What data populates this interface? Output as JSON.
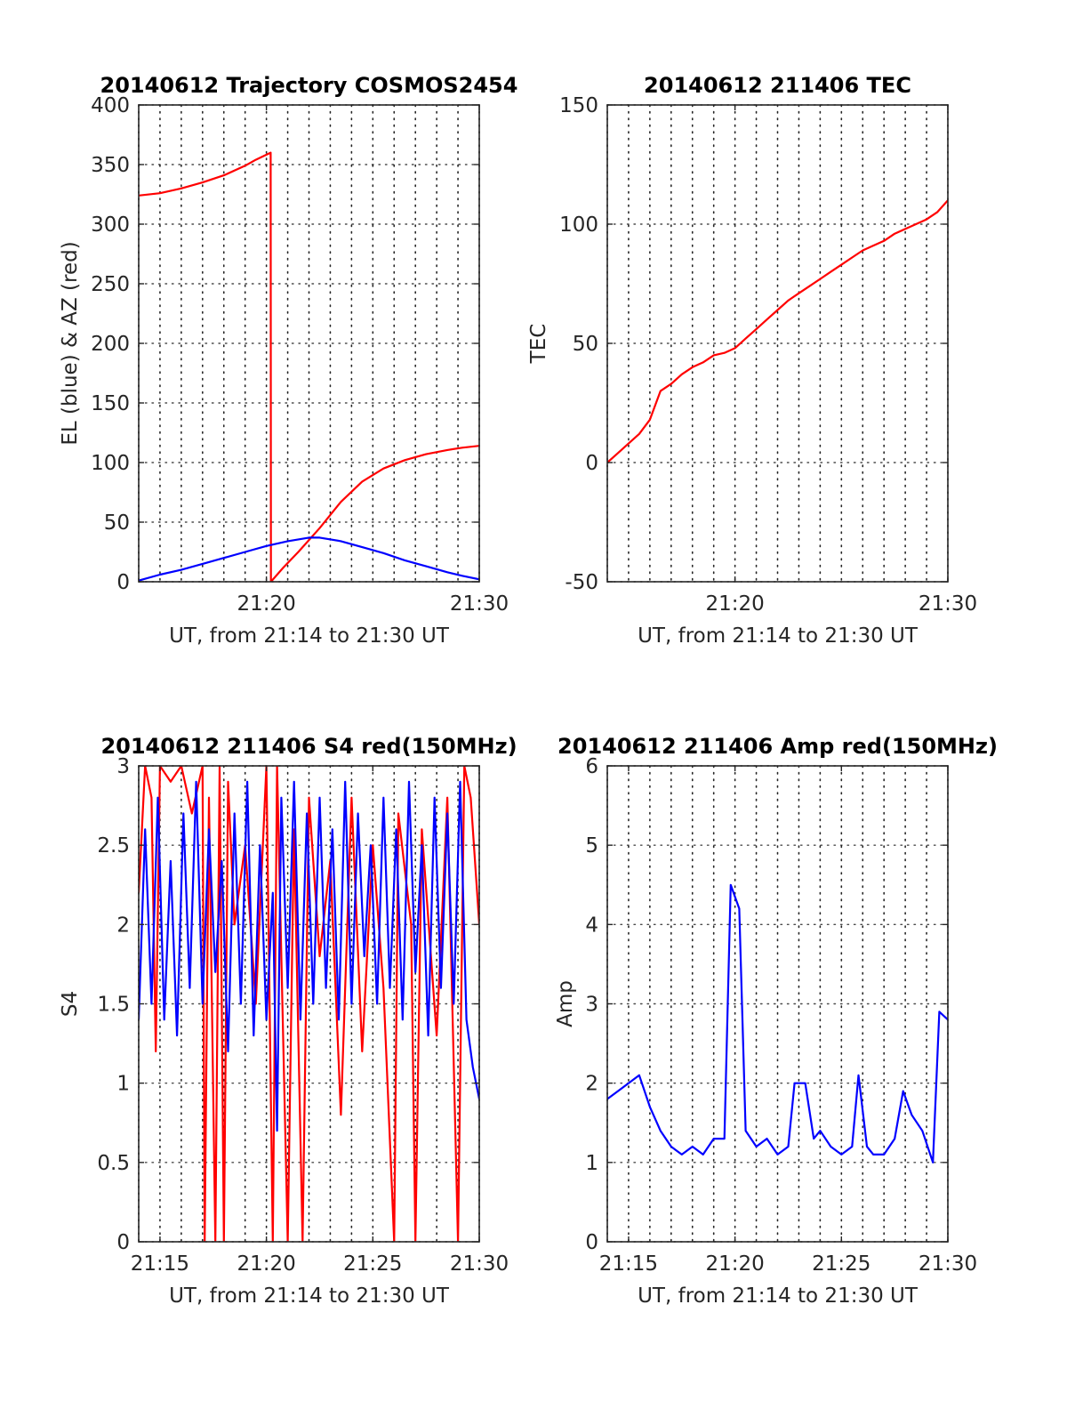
{
  "chart_data": [
    {
      "id": "trajectory",
      "type": "line",
      "title": "20140612 Trajectory COSMOS2454",
      "xlabel": "UT, from 21:14 to 21:30 UT",
      "ylabel": "EL (blue) & AZ (red)",
      "xlim": [
        14,
        30
      ],
      "ylim": [
        0,
        400
      ],
      "yticks": [
        0,
        50,
        100,
        150,
        200,
        250,
        300,
        350,
        400
      ],
      "xticks": [
        {
          "value": 20,
          "label": "21:20"
        },
        {
          "value": 30,
          "label": "21:30"
        }
      ],
      "grid": true,
      "series": [
        {
          "color": "#ff0000",
          "points": [
            [
              14,
              324
            ],
            [
              15,
              326
            ],
            [
              16,
              330
            ],
            [
              17,
              335
            ],
            [
              18,
              341
            ],
            [
              19,
              349
            ],
            [
              19.5,
              354
            ],
            [
              20.2,
              360
            ],
            [
              20.21,
              0
            ],
            [
              20.8,
              12
            ],
            [
              21.5,
              25
            ],
            [
              22.5,
              45
            ],
            [
              23.5,
              67
            ],
            [
              24.5,
              84
            ],
            [
              25.5,
              95
            ],
            [
              26.5,
              102
            ],
            [
              27.5,
              107
            ],
            [
              28.5,
              110.5
            ],
            [
              29.2,
              112.5
            ],
            [
              30,
              114
            ]
          ]
        },
        {
          "color": "#0000ff",
          "points": [
            [
              14,
              1
            ],
            [
              15,
              6
            ],
            [
              16,
              10
            ],
            [
              17,
              15
            ],
            [
              18,
              20
            ],
            [
              19,
              25
            ],
            [
              20,
              30
            ],
            [
              21,
              34
            ],
            [
              22,
              37
            ],
            [
              22.5,
              37
            ],
            [
              23.5,
              34
            ],
            [
              24.5,
              29
            ],
            [
              25.5,
              24
            ],
            [
              26.5,
              18
            ],
            [
              27.5,
              13
            ],
            [
              28.5,
              8
            ],
            [
              29.2,
              5
            ],
            [
              30,
              2
            ]
          ]
        }
      ]
    },
    {
      "id": "tec",
      "type": "line",
      "title": "20140612 211406 TEC",
      "xlabel": "UT, from 21:14 to 21:30 UT",
      "ylabel": "TEC",
      "xlim": [
        14,
        30
      ],
      "ylim": [
        -50,
        150
      ],
      "yticks": [
        -50,
        0,
        50,
        100,
        150
      ],
      "xticks": [
        {
          "value": 20,
          "label": "21:20"
        },
        {
          "value": 30,
          "label": "21:30"
        }
      ],
      "grid": true,
      "series": [
        {
          "color": "#ff0000",
          "points": [
            [
              14,
              0
            ],
            [
              14.5,
              4
            ],
            [
              15,
              8
            ],
            [
              15.5,
              12
            ],
            [
              16,
              18
            ],
            [
              16.5,
              30
            ],
            [
              17,
              33
            ],
            [
              17.5,
              37
            ],
            [
              18,
              40
            ],
            [
              18.5,
              42
            ],
            [
              19,
              45
            ],
            [
              19.5,
              46
            ],
            [
              20,
              48
            ],
            [
              20.5,
              52
            ],
            [
              21,
              56
            ],
            [
              21.5,
              60
            ],
            [
              22,
              64
            ],
            [
              22.5,
              68
            ],
            [
              23,
              71
            ],
            [
              23.5,
              74
            ],
            [
              24,
              77
            ],
            [
              24.5,
              80
            ],
            [
              25,
              83
            ],
            [
              25.5,
              86
            ],
            [
              26,
              89
            ],
            [
              26.5,
              91
            ],
            [
              27,
              93
            ],
            [
              27.5,
              96
            ],
            [
              28,
              98
            ],
            [
              28.5,
              100
            ],
            [
              29,
              102
            ],
            [
              29.5,
              105
            ],
            [
              30,
              110
            ]
          ]
        }
      ]
    },
    {
      "id": "s4",
      "type": "line",
      "title": "20140612 211406 S4 red(150MHz)",
      "xlabel": "UT, from 21:14 to 21:30 UT",
      "ylabel": "S4",
      "xlim": [
        14,
        30
      ],
      "ylim": [
        0,
        3
      ],
      "yticks": [
        0,
        0.5,
        1,
        1.5,
        2,
        2.5,
        3
      ],
      "xticks": [
        {
          "value": 15,
          "label": "21:15"
        },
        {
          "value": 20,
          "label": "21:20"
        },
        {
          "value": 25,
          "label": "21:25"
        },
        {
          "value": 30,
          "label": "21:30"
        }
      ],
      "grid": true,
      "series": [
        {
          "color": "#ff0000",
          "points": [
            [
              14,
              2.2
            ],
            [
              14.3,
              3
            ],
            [
              14.6,
              2.8
            ],
            [
              14.8,
              1.2
            ],
            [
              15,
              3
            ],
            [
              15.5,
              2.9
            ],
            [
              16,
              3
            ],
            [
              16.5,
              2.7
            ],
            [
              17,
              3
            ],
            [
              17.1,
              0
            ],
            [
              17.3,
              2.8
            ],
            [
              17.6,
              0
            ],
            [
              17.8,
              3
            ],
            [
              18,
              0
            ],
            [
              18.2,
              2.9
            ],
            [
              18.5,
              2
            ],
            [
              19,
              2.5
            ],
            [
              19.5,
              1.5
            ],
            [
              20,
              3
            ],
            [
              20.3,
              0
            ],
            [
              20.5,
              3
            ],
            [
              21,
              0
            ],
            [
              21.3,
              2.6
            ],
            [
              21.7,
              0
            ],
            [
              22,
              2.8
            ],
            [
              22.5,
              1.8
            ],
            [
              23,
              2.4
            ],
            [
              23.5,
              0.8
            ],
            [
              24,
              2.8
            ],
            [
              24.5,
              1.2
            ],
            [
              25,
              2.5
            ],
            [
              25.5,
              1.6
            ],
            [
              26,
              0
            ],
            [
              26.2,
              2.7
            ],
            [
              26.8,
              2
            ],
            [
              27,
              0
            ],
            [
              27.3,
              2.6
            ],
            [
              28,
              1.3
            ],
            [
              28.5,
              2.8
            ],
            [
              29,
              0
            ],
            [
              29.3,
              3
            ],
            [
              29.6,
              2.8
            ],
            [
              30,
              2
            ]
          ]
        },
        {
          "color": "#0000ff",
          "points": [
            [
              14,
              1.4
            ],
            [
              14.3,
              2.6
            ],
            [
              14.6,
              1.5
            ],
            [
              14.9,
              2.8
            ],
            [
              15.2,
              1.4
            ],
            [
              15.5,
              2.4
            ],
            [
              15.8,
              1.3
            ],
            [
              16.1,
              2.7
            ],
            [
              16.4,
              1.6
            ],
            [
              16.7,
              2.9
            ],
            [
              17,
              1.5
            ],
            [
              17.3,
              2.6
            ],
            [
              17.6,
              1.7
            ],
            [
              17.9,
              2.4
            ],
            [
              18.2,
              1.2
            ],
            [
              18.5,
              2.7
            ],
            [
              18.8,
              1.5
            ],
            [
              19.1,
              2.9
            ],
            [
              19.4,
              1.3
            ],
            [
              19.7,
              2.5
            ],
            [
              20,
              1.4
            ],
            [
              20.3,
              2.2
            ],
            [
              20.5,
              0.7
            ],
            [
              20.7,
              2.8
            ],
            [
              21,
              1.6
            ],
            [
              21.3,
              2.9
            ],
            [
              21.6,
              1.4
            ],
            [
              21.9,
              2.7
            ],
            [
              22.2,
              1.5
            ],
            [
              22.5,
              2.8
            ],
            [
              22.8,
              1.6
            ],
            [
              23.1,
              2.6
            ],
            [
              23.4,
              1.4
            ],
            [
              23.7,
              2.9
            ],
            [
              24,
              1.5
            ],
            [
              24.3,
              2.7
            ],
            [
              24.6,
              1.8
            ],
            [
              24.9,
              2.5
            ],
            [
              25.2,
              1.5
            ],
            [
              25.5,
              2.8
            ],
            [
              25.8,
              1.6
            ],
            [
              26.1,
              2.6
            ],
            [
              26.4,
              1.4
            ],
            [
              26.7,
              2.9
            ],
            [
              27,
              1.7
            ],
            [
              27.3,
              2.5
            ],
            [
              27.6,
              1.3
            ],
            [
              27.9,
              2.8
            ],
            [
              28.2,
              1.6
            ],
            [
              28.5,
              2.7
            ],
            [
              28.8,
              1.5
            ],
            [
              29.1,
              2.9
            ],
            [
              29.4,
              1.4
            ],
            [
              29.7,
              1.1
            ],
            [
              30,
              0.9
            ]
          ]
        }
      ]
    },
    {
      "id": "amp",
      "type": "line",
      "title": "20140612 211406 Amp red(150MHz)",
      "xlabel": "UT, from 21:14 to 21:30 UT",
      "ylabel": "Amp",
      "xlim": [
        14,
        30
      ],
      "ylim": [
        0,
        6
      ],
      "yticks": [
        0,
        1,
        2,
        3,
        4,
        5,
        6
      ],
      "xticks": [
        {
          "value": 15,
          "label": "21:15"
        },
        {
          "value": 20,
          "label": "21:20"
        },
        {
          "value": 25,
          "label": "21:25"
        },
        {
          "value": 30,
          "label": "21:30"
        }
      ],
      "grid": true,
      "series": [
        {
          "color": "#0000ff",
          "points": [
            [
              14,
              1.8
            ],
            [
              14.5,
              1.9
            ],
            [
              15,
              2
            ],
            [
              15.5,
              2.1
            ],
            [
              16,
              1.7
            ],
            [
              16.5,
              1.4
            ],
            [
              17,
              1.2
            ],
            [
              17.5,
              1.1
            ],
            [
              18,
              1.2
            ],
            [
              18.5,
              1.1
            ],
            [
              19,
              1.3
            ],
            [
              19.5,
              1.3
            ],
            [
              19.8,
              4.5
            ],
            [
              20.2,
              4.2
            ],
            [
              20.5,
              1.4
            ],
            [
              21,
              1.2
            ],
            [
              21.5,
              1.3
            ],
            [
              22,
              1.1
            ],
            [
              22.5,
              1.2
            ],
            [
              22.8,
              2
            ],
            [
              23.3,
              2
            ],
            [
              23.7,
              1.3
            ],
            [
              24,
              1.4
            ],
            [
              24.5,
              1.2
            ],
            [
              25,
              1.1
            ],
            [
              25.5,
              1.2
            ],
            [
              25.8,
              2.1
            ],
            [
              26.2,
              1.2
            ],
            [
              26.5,
              1.1
            ],
            [
              27,
              1.1
            ],
            [
              27.5,
              1.3
            ],
            [
              27.9,
              1.9
            ],
            [
              28.3,
              1.6
            ],
            [
              28.8,
              1.4
            ],
            [
              29.3,
              1
            ],
            [
              29.6,
              2.9
            ],
            [
              30,
              2.8
            ]
          ]
        }
      ]
    }
  ]
}
